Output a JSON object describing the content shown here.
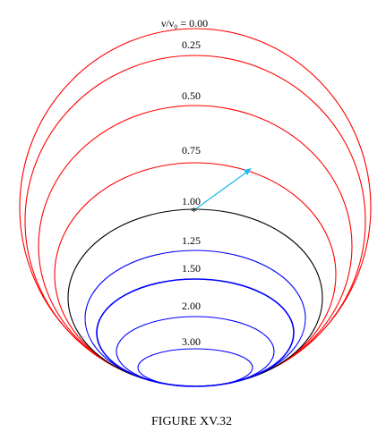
{
  "header_label": "ν/ν₀  =  0.00",
  "curves": [
    {
      "label": "0.25",
      "color": "#ff0000"
    },
    {
      "label": "0.50",
      "color": "#ff0000"
    },
    {
      "label": "0.75",
      "color": "#ff0000"
    },
    {
      "label": "1.00",
      "color": "#000000"
    },
    {
      "label": "1.25",
      "color": "#0000ff"
    },
    {
      "label": "1.50",
      "color": "#0000ff"
    },
    {
      "label": "2.00",
      "color": "#0000ff"
    },
    {
      "label": "3.00",
      "color": "#0000ff"
    }
  ],
  "outer_curve_color": "#ff0000",
  "arrow_color": "#1ebcf0",
  "marker_glyph": "*",
  "caption": "FIGURE XV.32"
}
